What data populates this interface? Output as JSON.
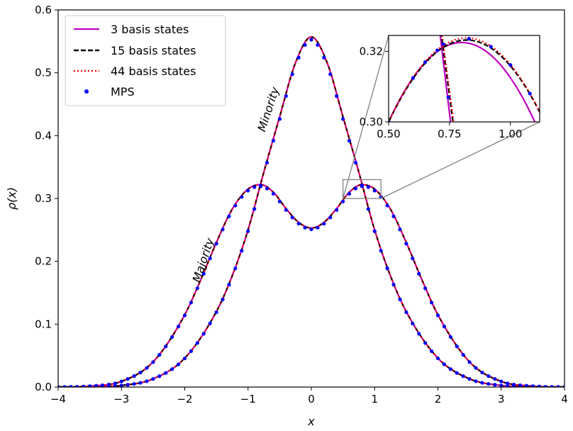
{
  "chart_data": {
    "type": "line",
    "xlabel": "x",
    "ylabel": "ρ(x)",
    "xlim": [
      -4,
      4
    ],
    "ylim": [
      0,
      0.6
    ],
    "xticks": [
      -4,
      -3,
      -2,
      -1,
      0,
      1,
      2,
      3,
      4
    ],
    "xtick_labels": [
      "−4",
      "−3",
      "−2",
      "−1",
      "0",
      "1",
      "2",
      "3",
      "4"
    ],
    "yticks": [
      0.0,
      0.1,
      0.2,
      0.3,
      0.4,
      0.5,
      0.6
    ],
    "ytick_labels": [
      "0.0",
      "0.1",
      "0.2",
      "0.3",
      "0.4",
      "0.5",
      "0.6"
    ],
    "grid": false,
    "legend_position": "top-left",
    "series": [
      {
        "name": "3 basis states",
        "color": "#c000c0",
        "style": "solid"
      },
      {
        "name": "15 basis states",
        "color": "#000000",
        "style": "dashed"
      },
      {
        "name": "44 basis states",
        "color": "#ff0000",
        "style": "dotted"
      },
      {
        "name": "MPS",
        "color": "#0000ff",
        "style": "markers"
      }
    ],
    "curves": [
      {
        "label": "Minority",
        "x": [
          -4.0,
          -3.5,
          -3.0,
          -2.5,
          -2.0,
          -1.5,
          -1.25,
          -1.0,
          -0.75,
          -0.5,
          -0.25,
          0.0,
          0.25,
          0.5,
          0.75,
          1.0,
          1.25,
          1.5,
          2.0,
          2.5,
          3.0,
          3.5,
          4.0
        ],
        "y": [
          0.0,
          0.0003,
          0.0025,
          0.013,
          0.046,
          0.12,
          0.177,
          0.25,
          0.342,
          0.43,
          0.516,
          0.557,
          0.516,
          0.43,
          0.342,
          0.25,
          0.177,
          0.12,
          0.046,
          0.013,
          0.0025,
          0.0003,
          0.0
        ]
      },
      {
        "label": "Majority",
        "x": [
          -4.0,
          -3.5,
          -3.0,
          -2.5,
          -2.0,
          -1.75,
          -1.5,
          -1.25,
          -1.0,
          -0.8,
          -0.6,
          -0.4,
          -0.2,
          0.0,
          0.2,
          0.4,
          0.6,
          0.8,
          1.0,
          1.25,
          1.5,
          1.75,
          2.0,
          2.5,
          3.0,
          3.5,
          4.0
        ],
        "y": [
          0.0,
          0.0015,
          0.009,
          0.04,
          0.115,
          0.17,
          0.23,
          0.283,
          0.315,
          0.322,
          0.31,
          0.284,
          0.262,
          0.253,
          0.262,
          0.284,
          0.31,
          0.322,
          0.315,
          0.283,
          0.23,
          0.17,
          0.115,
          0.04,
          0.009,
          0.0015,
          0.0
        ]
      }
    ],
    "annotations": [
      {
        "text": "Minority",
        "x": -0.62,
        "y": 0.44
      },
      {
        "text": "Majority",
        "x": -1.65,
        "y": 0.2
      }
    ],
    "inset": {
      "xlim": [
        0.5,
        1.12
      ],
      "ylim": [
        0.3,
        0.3245
      ],
      "xticks": [
        0.5,
        0.75,
        1.0
      ],
      "xtick_labels": [
        "0.50",
        "0.75",
        "1.00"
      ],
      "yticks": [
        0.3,
        0.32
      ],
      "ytick_labels": [
        "0.30",
        "0.32"
      ],
      "zoom_box": {
        "x": [
          0.5,
          1.1
        ],
        "y": [
          0.3,
          0.33
        ]
      },
      "peak": {
        "3 basis states": 0.3225,
        "15 basis states": 0.3232,
        "44 basis states": 0.3238,
        "MPS": 0.3236
      }
    }
  }
}
